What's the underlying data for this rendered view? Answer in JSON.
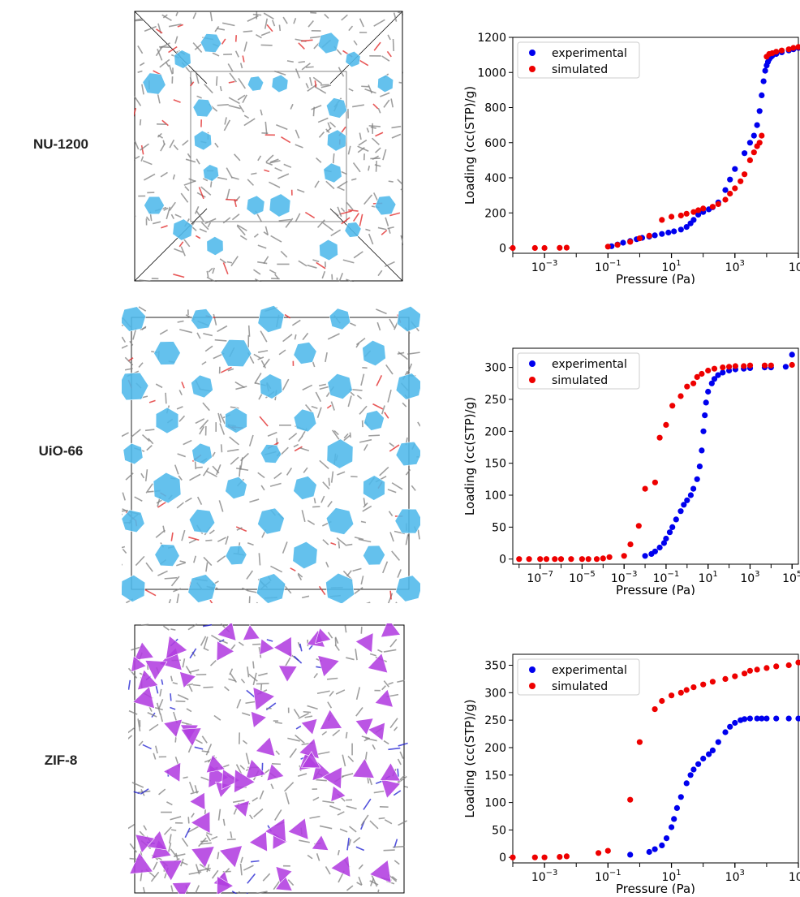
{
  "rows": [
    {
      "label": "NU-1200"
    },
    {
      "label": "UiO-66"
    },
    {
      "label": "ZIF-8"
    }
  ],
  "colors": {
    "experimental": "#0000ee",
    "simulated": "#ee0000",
    "zr_cluster": "#4fb8ea",
    "zn_node": "#b23ee0",
    "organic_linker": "#7f7f7f",
    "oxygen": "#e02020",
    "nitrogen": "#1a1ad0"
  },
  "chart_data": [
    {
      "type": "scatter",
      "xscale": "log",
      "xlabel": "Pressure (Pa)",
      "ylabel": "Loading (cc(STP)/g)",
      "xlim": [
        0.0001,
        100000.0
      ],
      "ylim": [
        -30,
        1200
      ],
      "xticks": [
        "10^-3",
        "10^-1",
        "10^1",
        "10^3",
        "10^5"
      ],
      "yticks": [
        0,
        200,
        400,
        600,
        800,
        1000,
        1200
      ],
      "legend": {
        "position": "top-left",
        "entries": [
          "experimental",
          "simulated"
        ]
      },
      "series": [
        {
          "name": "experimental",
          "x": [
            0.13,
            0.2,
            0.3,
            0.5,
            0.8,
            1.2,
            2,
            3,
            5,
            8,
            12,
            20,
            30,
            40,
            50,
            70,
            100,
            150,
            200,
            300,
            500,
            700,
            1000,
            2000,
            3000,
            4000,
            5000,
            6000,
            7000,
            8000,
            9000,
            10000,
            11000,
            12000,
            13000,
            14000,
            15000,
            20000,
            30000,
            50000,
            70000,
            100000
          ],
          "y": [
            10,
            20,
            30,
            40,
            50,
            58,
            65,
            72,
            80,
            88,
            95,
            105,
            120,
            140,
            160,
            190,
            205,
            220,
            232,
            260,
            330,
            390,
            450,
            540,
            600,
            640,
            700,
            780,
            870,
            950,
            1010,
            1040,
            1060,
            1075,
            1085,
            1090,
            1095,
            1105,
            1115,
            1125,
            1132,
            1140
          ]
        },
        {
          "name": "simulated",
          "x": [
            0.0001,
            0.0005,
            0.001,
            0.003,
            0.005,
            0.1,
            0.2,
            0.5,
            1,
            2,
            5,
            10,
            20,
            30,
            50,
            70,
            100,
            200,
            300,
            500,
            700,
            1000,
            1500,
            2000,
            3000,
            4000,
            5000,
            6000,
            7000,
            10000,
            12000,
            15000,
            20000,
            30000,
            50000,
            70000,
            100000
          ],
          "y": [
            0,
            0,
            0,
            1,
            2,
            8,
            18,
            35,
            55,
            70,
            160,
            178,
            185,
            195,
            205,
            215,
            225,
            235,
            250,
            275,
            310,
            340,
            380,
            420,
            500,
            545,
            580,
            600,
            640,
            1090,
            1105,
            1110,
            1118,
            1125,
            1132,
            1140,
            1145
          ]
        }
      ]
    },
    {
      "type": "scatter",
      "xscale": "log",
      "xlabel": "Pressure (Pa)",
      "ylabel": "Loading (cc(STP)/g)",
      "xlim": [
        5e-09,
        200000.0
      ],
      "ylim": [
        -8,
        330
      ],
      "xticks": [
        "10^-7",
        "10^-5",
        "10^-3",
        "10^-1",
        "10^1",
        "10^3",
        "10^5"
      ],
      "yticks": [
        0,
        50,
        100,
        150,
        200,
        250,
        300
      ],
      "legend": {
        "position": "top-left",
        "entries": [
          "experimental",
          "simulated"
        ]
      },
      "series": [
        {
          "name": "experimental",
          "x": [
            0.01,
            0.02,
            0.03,
            0.05,
            0.08,
            0.1,
            0.15,
            0.2,
            0.3,
            0.5,
            0.7,
            1,
            1.5,
            2,
            3,
            4,
            5,
            6,
            7,
            8,
            10,
            15,
            20,
            30,
            50,
            100,
            200,
            500,
            1000,
            5000,
            10000,
            50000,
            100000
          ],
          "y": [
            5,
            8,
            12,
            18,
            25,
            32,
            42,
            50,
            62,
            75,
            85,
            92,
            100,
            110,
            125,
            145,
            170,
            200,
            225,
            245,
            262,
            275,
            282,
            288,
            292,
            295,
            297,
            298,
            299,
            300,
            300,
            301,
            320
          ]
        },
        {
          "name": "simulated",
          "x": [
            1e-08,
            3e-08,
            1e-07,
            2e-07,
            5e-07,
            1e-06,
            3e-06,
            1e-05,
            2e-05,
            5e-05,
            0.0001,
            0.0002,
            0.001,
            0.002,
            0.005,
            0.01,
            0.03,
            0.05,
            0.1,
            0.2,
            0.5,
            1,
            2,
            3,
            5,
            10,
            20,
            50,
            100,
            200,
            500,
            1000,
            5000,
            10000,
            100000
          ],
          "y": [
            0,
            0,
            0,
            0,
            0,
            0,
            0,
            0,
            0,
            0,
            1,
            3,
            5,
            23,
            52,
            110,
            120,
            190,
            210,
            240,
            255,
            270,
            275,
            285,
            290,
            295,
            298,
            300,
            301,
            302,
            302,
            303,
            303,
            303,
            304
          ]
        }
      ]
    },
    {
      "type": "scatter",
      "xscale": "log",
      "xlabel": "Pressure (Pa)",
      "ylabel": "Loading (cc(STP)/g)",
      "xlim": [
        0.0001,
        100000.0
      ],
      "ylim": [
        -10,
        370
      ],
      "xticks": [
        "10^-3",
        "10^-1",
        "10^1",
        "10^3",
        "10^5"
      ],
      "yticks": [
        0,
        50,
        100,
        150,
        200,
        250,
        300,
        350
      ],
      "legend": {
        "position": "top-left",
        "entries": [
          "experimental",
          "simulated"
        ]
      },
      "series": [
        {
          "name": "experimental",
          "x": [
            0.5,
            2,
            3,
            5,
            7,
            10,
            12,
            15,
            20,
            30,
            40,
            50,
            70,
            100,
            150,
            200,
            300,
            500,
            700,
            1000,
            1500,
            2000,
            3000,
            5000,
            7000,
            10000,
            20000,
            50000,
            100000
          ],
          "y": [
            5,
            10,
            15,
            22,
            35,
            55,
            70,
            90,
            110,
            135,
            150,
            160,
            170,
            180,
            188,
            195,
            210,
            228,
            238,
            245,
            250,
            252,
            253,
            253,
            253,
            253,
            253,
            253,
            253
          ]
        },
        {
          "name": "simulated",
          "x": [
            0.0001,
            0.0005,
            0.001,
            0.003,
            0.005,
            0.05,
            0.1,
            0.5,
            1,
            3,
            5,
            10,
            20,
            30,
            50,
            100,
            200,
            500,
            1000,
            2000,
            3000,
            5000,
            10000,
            20000,
            50000,
            100000
          ],
          "y": [
            0,
            0,
            0,
            1,
            2,
            8,
            12,
            105,
            210,
            270,
            285,
            295,
            300,
            305,
            310,
            315,
            320,
            325,
            330,
            335,
            340,
            342,
            345,
            348,
            350,
            355
          ]
        }
      ]
    }
  ]
}
